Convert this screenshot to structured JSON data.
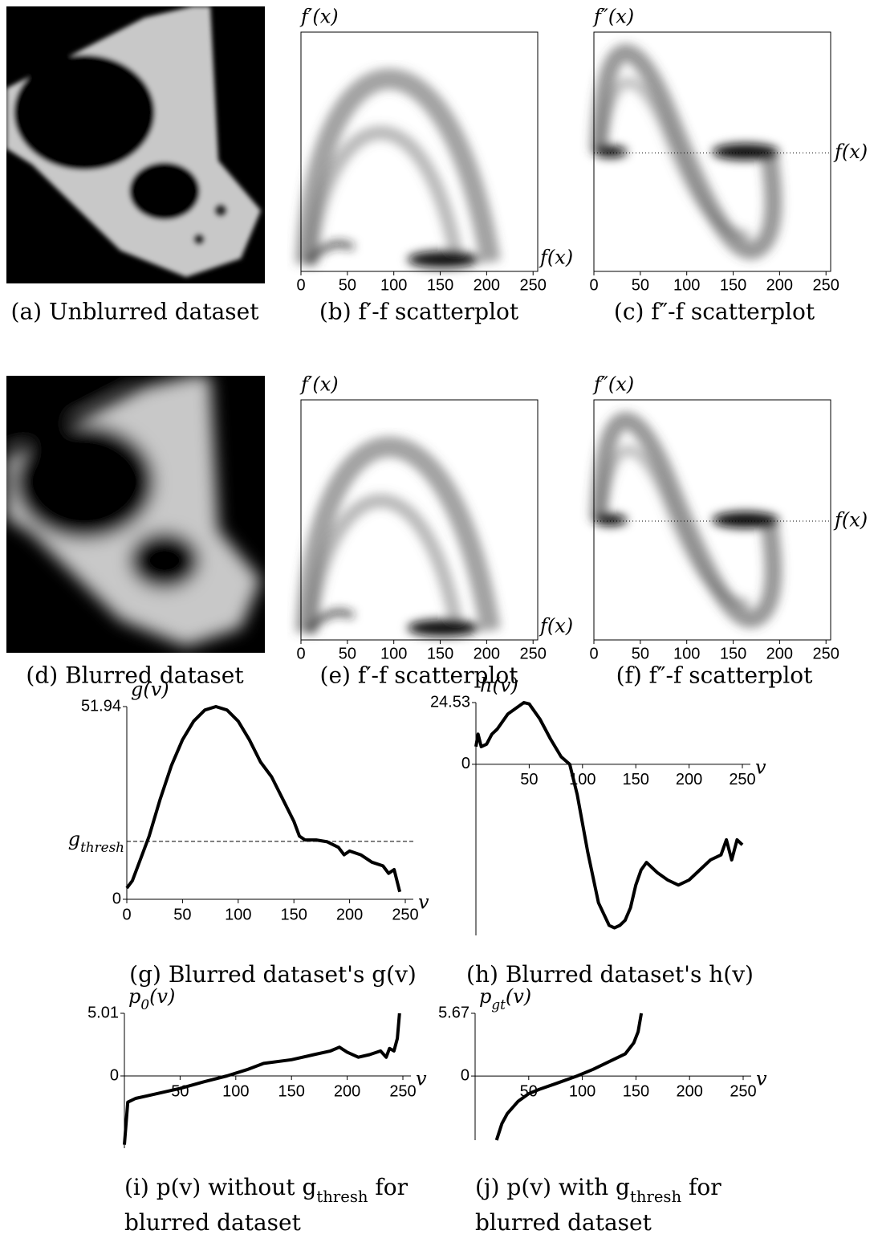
{
  "images": [
    {
      "caption": [
        "(a) Unblurred dataset"
      ]
    },
    {
      "caption": [
        "(d) Blurred dataset"
      ]
    }
  ],
  "chart_data": [
    {
      "type": "density",
      "caption": [
        "(b) f′-f scatterplot"
      ],
      "xlabel": "f(x)",
      "ylabel": "f′(x)",
      "xlim": [
        0,
        255
      ],
      "xticks": [
        0,
        50,
        100,
        150,
        200,
        250
      ],
      "zero_line": false
    },
    {
      "type": "density2",
      "caption": [
        "(c) f″-f scatterplot"
      ],
      "xlabel": "f(x)",
      "ylabel": "f″(x)",
      "xlim": [
        0,
        255
      ],
      "xticks": [
        0,
        50,
        100,
        150,
        200,
        250
      ],
      "zero_line": true
    },
    {
      "type": "density",
      "caption": [
        "(e) f′-f scatterplot"
      ],
      "xlabel": "f(x)",
      "ylabel": "f′(x)",
      "xlim": [
        0,
        255
      ],
      "xticks": [
        0,
        50,
        100,
        150,
        200,
        250
      ],
      "zero_line": false
    },
    {
      "type": "density2",
      "caption": [
        "(f) f″-f scatterplot"
      ],
      "xlabel": "f(x)",
      "ylabel": "f″(x)",
      "xlim": [
        0,
        255
      ],
      "xticks": [
        0,
        50,
        100,
        150,
        200,
        250
      ],
      "zero_line": true
    },
    {
      "type": "line",
      "caption": [
        [
          "(g) Blurred dataset's g(v)"
        ]
      ],
      "xlabel": "v",
      "ylabel": "g(v)",
      "x": [
        0,
        5,
        10,
        20,
        30,
        40,
        50,
        60,
        70,
        80,
        90,
        100,
        110,
        120,
        130,
        140,
        150,
        155,
        160,
        170,
        180,
        190,
        195,
        200,
        210,
        220,
        230,
        235,
        240,
        245
      ],
      "values": [
        3,
        5,
        9,
        17,
        27,
        36,
        43,
        48,
        51,
        51.94,
        51,
        48,
        43,
        37,
        33,
        27,
        21,
        17,
        16,
        16,
        15.5,
        14,
        12,
        13,
        12,
        10,
        9,
        7,
        8,
        2
      ],
      "xlim": [
        0,
        250
      ],
      "ylim": [
        0,
        51.94
      ],
      "xticks": [
        0,
        50,
        100,
        150,
        200,
        250
      ],
      "yticks": [
        0,
        51.94
      ],
      "threshold": {
        "value": 15.6,
        "label": [
          "g",
          "thresh"
        ]
      }
    },
    {
      "type": "line",
      "caption": [
        [
          "(h) Blurred dataset's h(v)"
        ]
      ],
      "xlabel": "v",
      "ylabel": "h(v)",
      "x": [
        0,
        2,
        5,
        10,
        15,
        20,
        30,
        40,
        45,
        50,
        60,
        70,
        80,
        88,
        95,
        105,
        115,
        125,
        130,
        135,
        140,
        145,
        150,
        155,
        160,
        170,
        180,
        190,
        200,
        210,
        220,
        230,
        235,
        240,
        245,
        250
      ],
      "values": [
        7,
        12,
        7,
        8,
        12,
        14,
        20,
        23,
        24.53,
        24,
        18,
        10,
        3,
        0,
        -12,
        -35,
        -55,
        -64,
        -65,
        -64,
        -62,
        -57,
        -48,
        -42,
        -39,
        -43,
        -46,
        -48,
        -46,
        -42,
        -38,
        -36,
        -30,
        -38,
        -30,
        -32
      ],
      "xlim": [
        0,
        250
      ],
      "ylim": [
        -68,
        24.53
      ],
      "xticks": [
        50,
        100,
        150,
        200,
        250
      ],
      "yticks": [
        0,
        24.53
      ]
    },
    {
      "type": "line",
      "caption": [
        [
          "(i)  p(v)  without  g",
          "thresh",
          "  for"
        ],
        [
          "blurred dataset"
        ]
      ],
      "xlabel": "v",
      "ylabel": [
        "p",
        "0",
        "(v)"
      ],
      "x": [
        0,
        3,
        10,
        20,
        30,
        50,
        70,
        92,
        110,
        125,
        150,
        170,
        185,
        193,
        200,
        210,
        220,
        230,
        235,
        238,
        242,
        245,
        247
      ],
      "values": [
        -5.5,
        -2.1,
        -1.8,
        -1.6,
        -1.4,
        -1.0,
        -0.5,
        0,
        0.5,
        1.0,
        1.3,
        1.7,
        2.0,
        2.3,
        1.9,
        1.5,
        1.7,
        2.0,
        1.5,
        2.2,
        2.0,
        3.0,
        5.01
      ],
      "xlim": [
        0,
        250
      ],
      "ylim": [
        -5.78,
        5.01
      ],
      "xticks": [
        50,
        100,
        150,
        200,
        250
      ],
      "yticks": [
        0,
        5.01
      ]
    },
    {
      "type": "line",
      "caption": [
        [
          "(j)  p(v)  with  g",
          "thresh",
          "  for"
        ],
        [
          "blurred dataset"
        ]
      ],
      "xlabel": "v",
      "ylabel": [
        "p",
        "gt",
        "(v)"
      ],
      "x": [
        20,
        25,
        30,
        40,
        50,
        60,
        75,
        95,
        110,
        125,
        140,
        148,
        152,
        155
      ],
      "values": [
        -5.8,
        -4.3,
        -3.4,
        -2.3,
        -1.6,
        -1.2,
        -0.7,
        0,
        0.6,
        1.3,
        2.0,
        3.0,
        4.0,
        5.67
      ],
      "xlim": [
        0,
        250
      ],
      "ylim": [
        -5.8,
        5.67
      ],
      "xticks": [
        50,
        100,
        150,
        200,
        250
      ],
      "yticks": [
        0,
        5.67
      ]
    }
  ]
}
